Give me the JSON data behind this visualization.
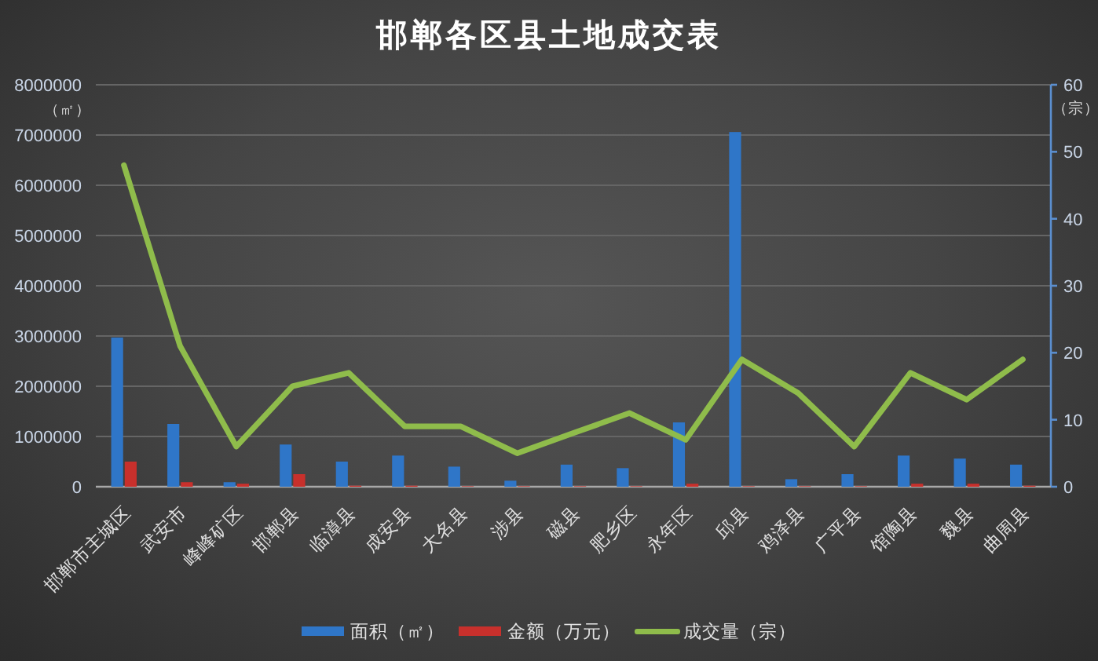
{
  "chart_data": {
    "type": "bar",
    "title": "邯郸各区县土地成交表",
    "ylabel": "（㎡）",
    "y2label": "（宗）",
    "categories": [
      "邯郸市主城区",
      "武安市",
      "峰峰矿区",
      "邯郸县",
      "临漳县",
      "成安县",
      "大名县",
      "涉县",
      "磁县",
      "肥乡区",
      "永年区",
      "邱县",
      "鸡泽县",
      "广平县",
      "馆陶县",
      "魏县",
      "曲周县"
    ],
    "series": [
      {
        "name": "面积（㎡）",
        "color": "#2f76c8",
        "values": [
          2970000,
          1250000,
          90000,
          840000,
          500000,
          620000,
          400000,
          120000,
          440000,
          370000,
          1280000,
          7060000,
          150000,
          250000,
          620000,
          560000,
          440000
        ]
      },
      {
        "name": "金额（万元）",
        "color": "#c8302c",
        "values": [
          500000,
          90000,
          60000,
          250000,
          20000,
          20000,
          10000,
          10000,
          10000,
          10000,
          60000,
          10000,
          10000,
          10000,
          60000,
          60000,
          20000
        ]
      },
      {
        "name": "成交量（宗）",
        "type": "line",
        "axis": "y2",
        "color": "#8fbc4b",
        "values": [
          48,
          21,
          6,
          15,
          17,
          9,
          9,
          5,
          8,
          11,
          7,
          19,
          14,
          6,
          17,
          13,
          19
        ]
      }
    ],
    "ylim": [
      0,
      8000000
    ],
    "yticks": [
      0,
      1000000,
      2000000,
      3000000,
      4000000,
      5000000,
      6000000,
      7000000,
      8000000
    ],
    "y2lim": [
      0,
      60
    ],
    "y2ticks": [
      0,
      10,
      20,
      30,
      40,
      50,
      60
    ],
    "grid": "y",
    "legend": "bottom"
  }
}
